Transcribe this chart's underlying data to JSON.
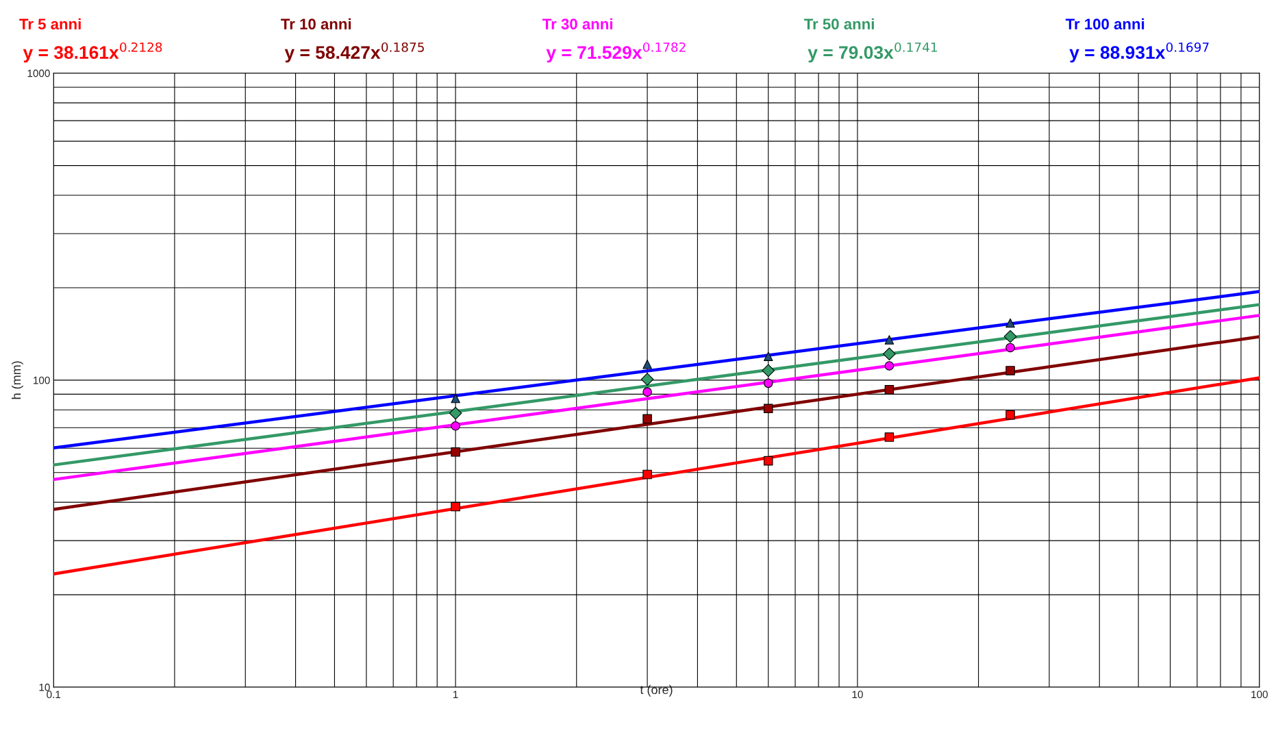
{
  "chart_data": {
    "type": "scatter",
    "xlabel": "t (ore)",
    "ylabel": "h (mm)",
    "log": "xy",
    "grid": true,
    "legend": false,
    "annotations": [
      "Tr 5 anni",
      "Tr 10 anni",
      "Tr 30 anni",
      "Tr 50 anni",
      "Tr 100 anni"
    ],
    "xlim": [
      0.1,
      100
    ],
    "ylim": [
      10,
      1000
    ],
    "xticks": [
      0.1,
      {
        "value": 0.2,
        "label": null
      },
      {
        "value": 0.3,
        "label": null
      },
      {
        "value": 0.4,
        "label": null
      },
      {
        "value": 0.5,
        "label": null
      },
      {
        "value": 0.6,
        "label": null
      },
      {
        "value": 0.7,
        "label": null
      },
      {
        "value": 0.8,
        "label": null
      },
      {
        "value": 0.9,
        "label": null
      },
      1,
      {
        "value": 2,
        "label": null
      },
      {
        "value": 3,
        "label": null
      },
      {
        "value": 4,
        "label": null
      },
      {
        "value": 5,
        "label": null
      },
      {
        "value": 6,
        "label": null
      },
      {
        "value": 7,
        "label": null
      },
      {
        "value": 8,
        "label": null
      },
      {
        "value": 9,
        "label": null
      },
      10,
      {
        "value": 20,
        "label": null
      },
      {
        "value": 30,
        "label": null
      },
      {
        "value": 40,
        "label": null
      },
      {
        "value": 50,
        "label": null
      },
      {
        "value": 60,
        "label": null
      },
      {
        "value": 70,
        "label": null
      },
      {
        "value": 80,
        "label": null
      },
      {
        "value": 90,
        "label": null
      },
      100
    ],
    "yticks": [
      10,
      {
        "value": 20,
        "label": null
      },
      {
        "value": 30,
        "label": null
      },
      {
        "value": 40,
        "label": null
      },
      {
        "value": 50,
        "label": null
      },
      {
        "value": 60,
        "label": null
      },
      {
        "value": 70,
        "label": null
      },
      {
        "value": 80,
        "label": null
      },
      {
        "value": 90,
        "label": null
      },
      100,
      {
        "value": 200,
        "label": null
      },
      {
        "value": 300,
        "label": null
      },
      {
        "value": 400,
        "label": null
      },
      {
        "value": 500,
        "label": null
      },
      {
        "value": 600,
        "label": null
      },
      {
        "value": 700,
        "label": null
      },
      {
        "value": 800,
        "label": null
      },
      {
        "value": 900,
        "label": null
      },
      1000
    ],
    "series": [
      {
        "marker": "square",
        "color": "#ff0000",
        "x": [
          1,
          3,
          6,
          12,
          24
        ],
        "values": [
          38.7,
          49.3,
          54.6,
          65.2,
          77.0
        ]
      },
      {
        "marker": "square",
        "color": "#990000",
        "x": [
          1,
          3,
          6,
          12,
          24
        ],
        "values": [
          58.3,
          74.8,
          80.8,
          93.1,
          107.4
        ]
      },
      {
        "marker": "circle",
        "color": "#ff00ff",
        "x": [
          1,
          3,
          6,
          12,
          24
        ],
        "values": [
          70.9,
          91.5,
          97.7,
          111.3,
          127.6
        ]
      },
      {
        "marker": "diamond",
        "color": "#339966",
        "x": [
          1,
          3,
          6,
          12,
          24
        ],
        "values": [
          78.0,
          100.6,
          107.4,
          121.7,
          138.7
        ]
      },
      {
        "marker": "triangle",
        "color": "#1f4e79",
        "x": [
          1,
          3,
          6,
          12,
          24
        ],
        "values": [
          87.2,
          112.6,
          119.5,
          135.3,
          153.4
        ]
      },
      {
        "name": "y = 38.161x$^{0.2128}$",
        "type": "line",
        "color": "#ff0000",
        "x": [
          0.1,
          100
        ],
        "values": [
          23.38,
          101.7
        ]
      },
      {
        "name": "y = 58.427x$^{0.1875}$",
        "type": "line",
        "color": "#800000",
        "x": [
          0.1,
          100
        ],
        "values": [
          37.94,
          138.5
        ]
      },
      {
        "name": "y = 71.529x$^{0.1782}$",
        "type": "line",
        "color": "#ff00ff",
        "x": [
          0.1,
          100
        ],
        "values": [
          47.46,
          162.5
        ]
      },
      {
        "name": "y = 79.03x$^{0.1741}$",
        "type": "line",
        "color": "#339966",
        "x": [
          0.1,
          100
        ],
        "values": [
          52.93,
          176.2
        ]
      },
      {
        "name": "y = 88.931x$^{0.1697}$",
        "type": "line",
        "color": "#0000ff",
        "x": [
          0.1,
          100
        ],
        "values": [
          60.17,
          194.3
        ]
      }
    ]
  }
}
